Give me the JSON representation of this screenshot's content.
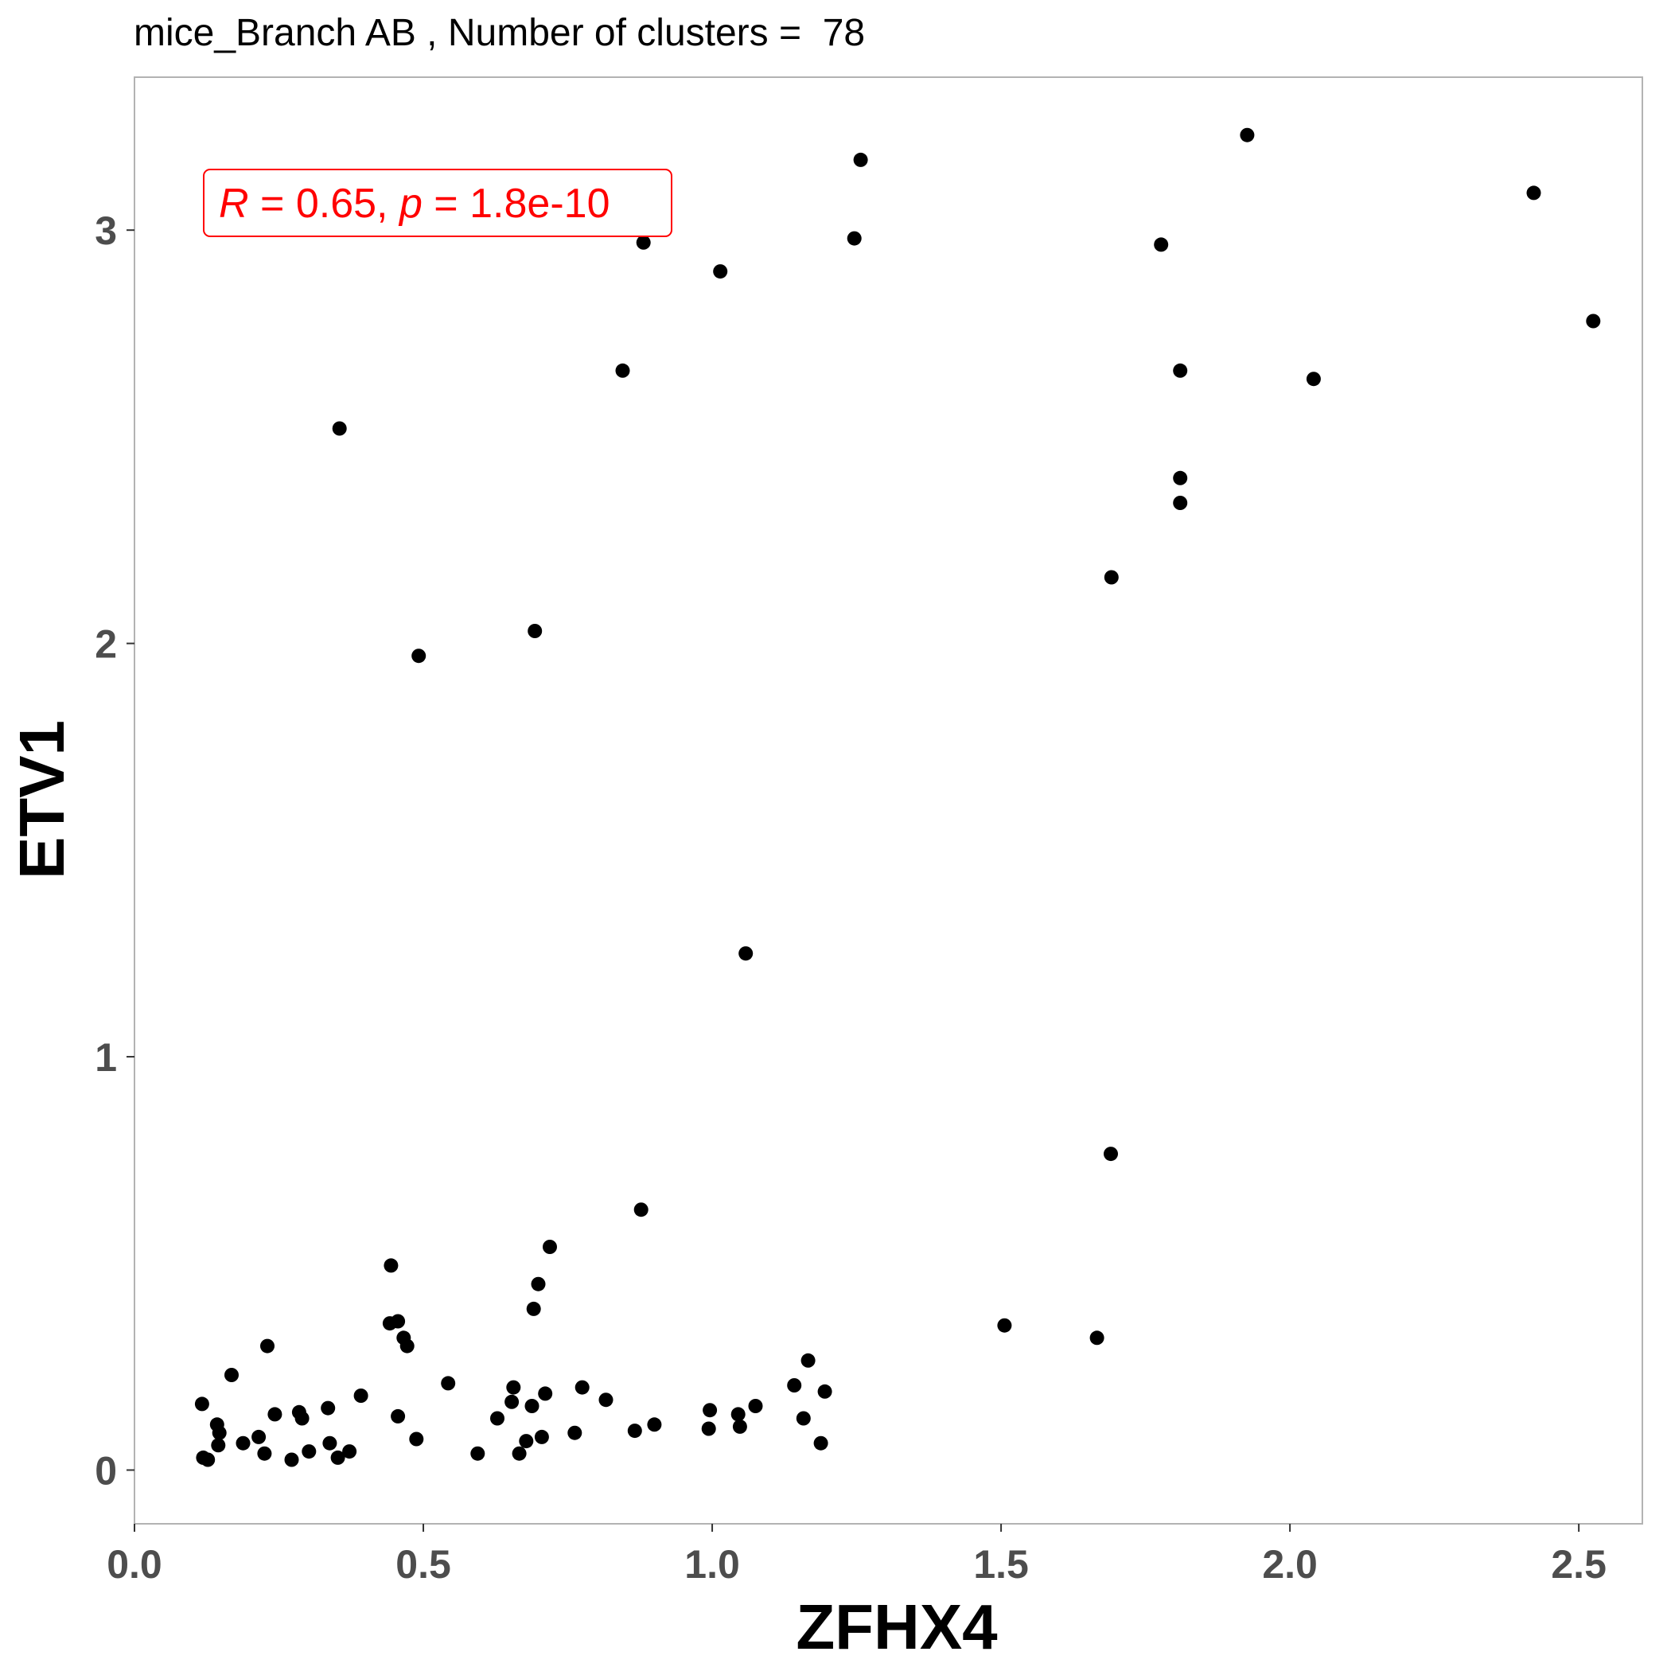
{
  "chart_data": {
    "type": "scatter",
    "title": "mice_Branch AB , Number of clusters =  78",
    "xlabel": "ZFHX4",
    "ylabel": "ETV1",
    "xlim": [
      0.0,
      2.61
    ],
    "ylim": [
      -0.13,
      3.37
    ],
    "xticks": [
      "0.0",
      "0.5",
      "1.0",
      "1.5",
      "2.0",
      "2.5"
    ],
    "yticks": [
      "0",
      "1",
      "2",
      "3"
    ],
    "grid": false,
    "annotation": {
      "r_symbol": "R",
      "r_value": " = 0.65, ",
      "p_symbol": "p",
      "p_value": " = 1.8e-10",
      "color": "#ff0000"
    },
    "point_color": "#000000",
    "points": [
      [
        0.117,
        0.16
      ],
      [
        0.119,
        0.03
      ],
      [
        0.127,
        0.025
      ],
      [
        0.143,
        0.11
      ],
      [
        0.147,
        0.09
      ],
      [
        0.145,
        0.06
      ],
      [
        0.168,
        0.23
      ],
      [
        0.188,
        0.065
      ],
      [
        0.215,
        0.08
      ],
      [
        0.225,
        0.04
      ],
      [
        0.23,
        0.3
      ],
      [
        0.243,
        0.135
      ],
      [
        0.272,
        0.025
      ],
      [
        0.285,
        0.14
      ],
      [
        0.29,
        0.125
      ],
      [
        0.302,
        0.045
      ],
      [
        0.335,
        0.15
      ],
      [
        0.338,
        0.065
      ],
      [
        0.352,
        0.03
      ],
      [
        0.355,
        2.52
      ],
      [
        0.372,
        0.045
      ],
      [
        0.392,
        0.18
      ],
      [
        0.442,
        0.355
      ],
      [
        0.444,
        0.495
      ],
      [
        0.456,
        0.13
      ],
      [
        0.456,
        0.36
      ],
      [
        0.466,
        0.32
      ],
      [
        0.472,
        0.3
      ],
      [
        0.488,
        0.075
      ],
      [
        0.492,
        1.97
      ],
      [
        0.543,
        0.21
      ],
      [
        0.594,
        0.04
      ],
      [
        0.628,
        0.125
      ],
      [
        0.653,
        0.165
      ],
      [
        0.656,
        0.2
      ],
      [
        0.666,
        0.04
      ],
      [
        0.678,
        0.07
      ],
      [
        0.688,
        0.155
      ],
      [
        0.691,
        0.39
      ],
      [
        0.693,
        2.03
      ],
      [
        0.699,
        0.45
      ],
      [
        0.705,
        0.08
      ],
      [
        0.711,
        0.185
      ],
      [
        0.719,
        0.54
      ],
      [
        0.762,
        0.09
      ],
      [
        0.775,
        0.2
      ],
      [
        0.816,
        0.17
      ],
      [
        0.845,
        2.66
      ],
      [
        0.866,
        0.095
      ],
      [
        0.877,
        0.63
      ],
      [
        0.881,
        2.97
      ],
      [
        0.9,
        0.11
      ],
      [
        0.994,
        0.1
      ],
      [
        0.996,
        0.145
      ],
      [
        1.014,
        2.9
      ],
      [
        1.045,
        0.135
      ],
      [
        1.048,
        0.105
      ],
      [
        1.058,
        1.25
      ],
      [
        1.075,
        0.155
      ],
      [
        1.142,
        0.205
      ],
      [
        1.158,
        0.125
      ],
      [
        1.166,
        0.265
      ],
      [
        1.188,
        0.065
      ],
      [
        1.195,
        0.19
      ],
      [
        1.246,
        2.98
      ],
      [
        1.257,
        3.17
      ],
      [
        1.506,
        0.35
      ],
      [
        1.666,
        0.32
      ],
      [
        1.69,
        0.765
      ],
      [
        1.691,
        2.16
      ],
      [
        1.777,
        2.965
      ],
      [
        1.81,
        2.66
      ],
      [
        1.81,
        2.4
      ],
      [
        1.81,
        2.34
      ],
      [
        1.926,
        3.23
      ],
      [
        2.041,
        2.64
      ],
      [
        2.422,
        3.09
      ],
      [
        2.525,
        2.78
      ]
    ]
  }
}
